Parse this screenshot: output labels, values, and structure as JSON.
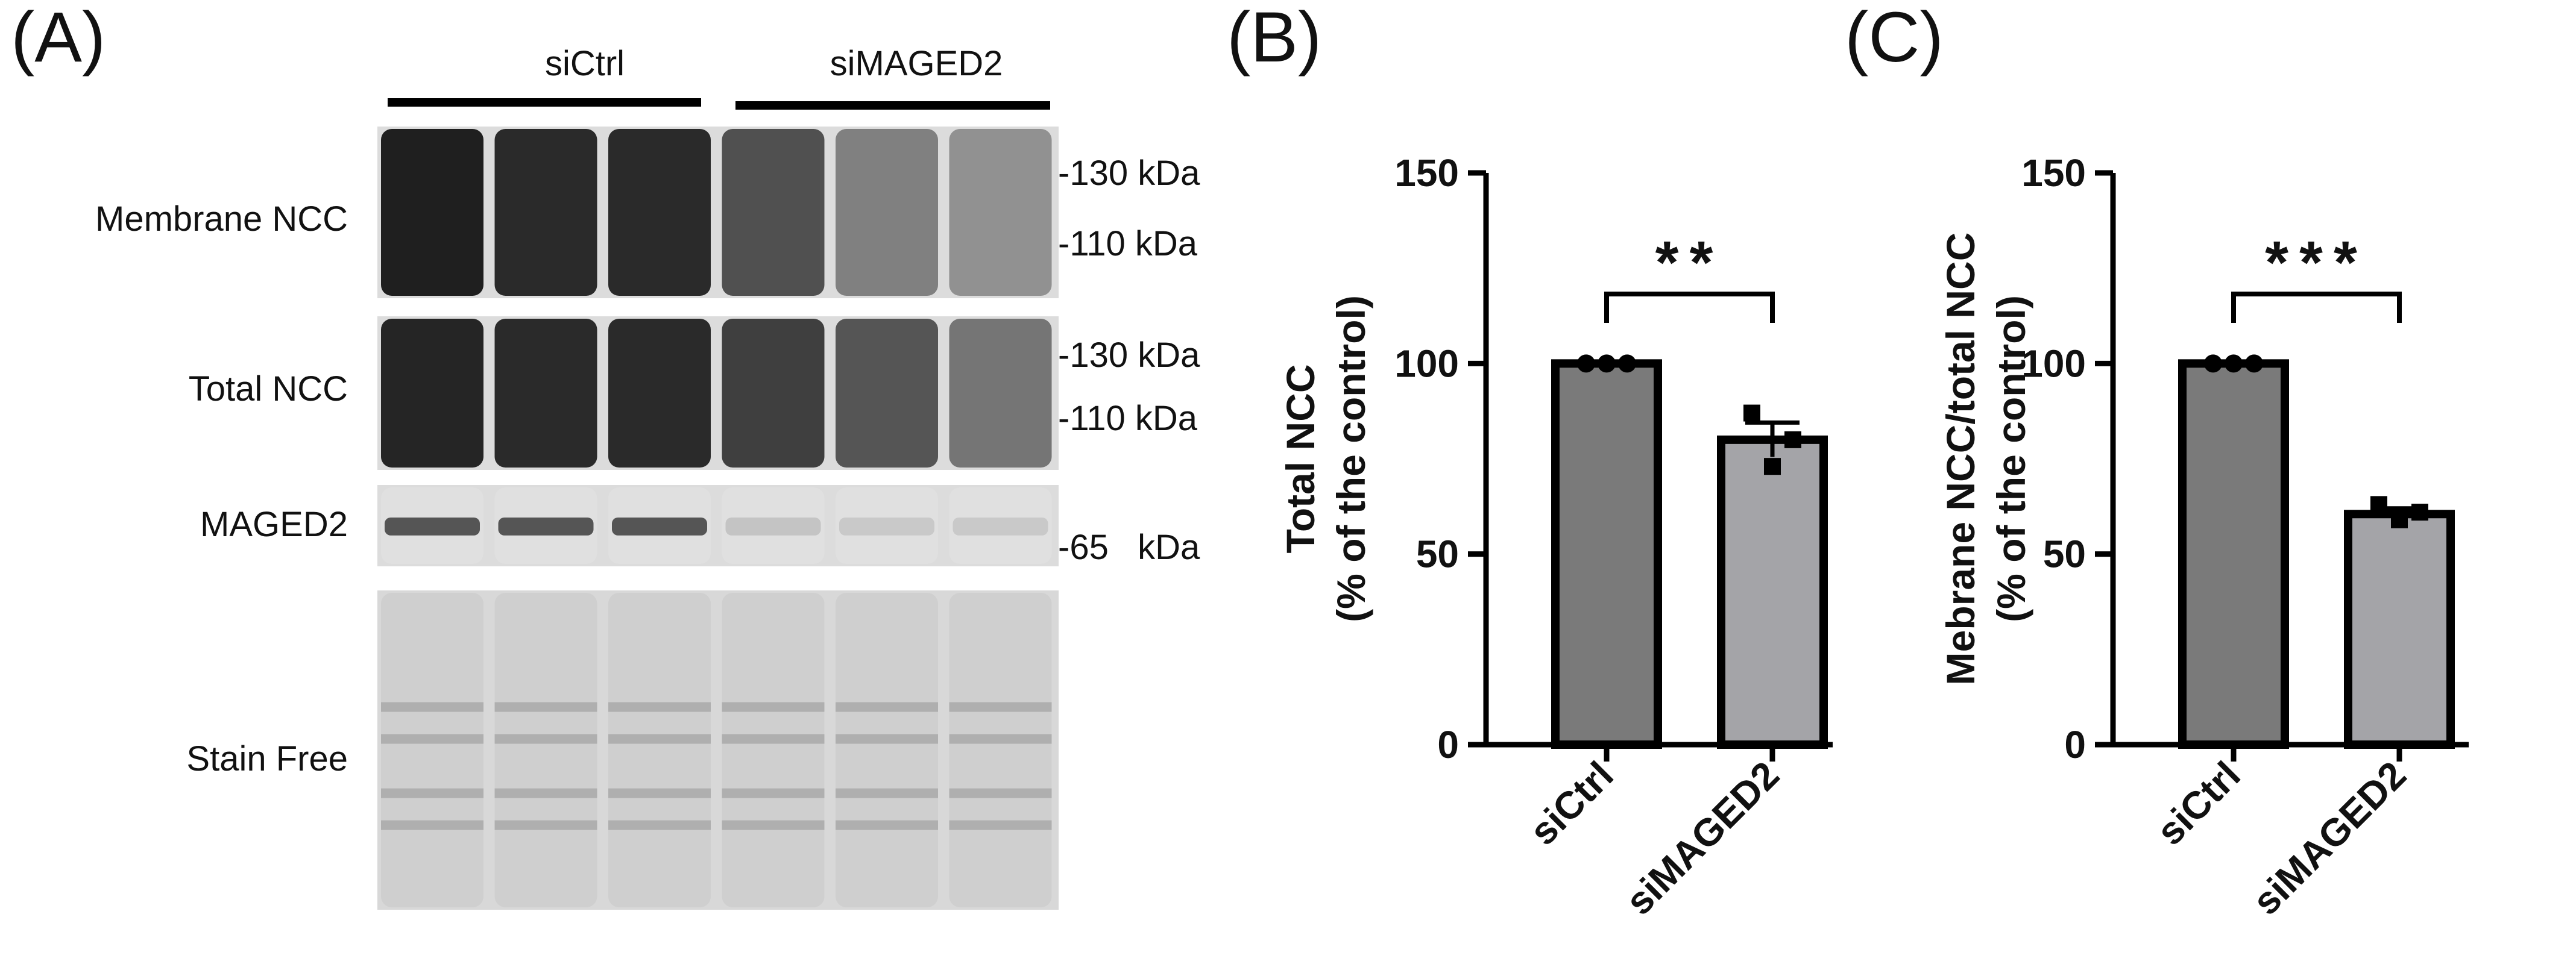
{
  "panel_labels": {
    "a": "(A)",
    "b": "(B)",
    "c": "(C)"
  },
  "blot": {
    "groups": [
      {
        "label": "siCtrl"
      },
      {
        "label": "siMAGED2"
      }
    ],
    "rows": [
      {
        "label": "Membrane NCC",
        "markers": [
          "-130 kDa",
          "-110 kDa"
        ],
        "intensities": [
          0.95,
          0.9,
          0.9,
          0.72,
          0.5,
          0.42
        ]
      },
      {
        "label": "Total NCC",
        "markers": [
          "-130 kDa",
          "-110 kDa"
        ],
        "intensities": [
          0.92,
          0.9,
          0.9,
          0.8,
          0.7,
          0.55
        ]
      },
      {
        "label": "MAGED2",
        "markers": [
          "-65   kDa"
        ],
        "intensities": [
          0.7,
          0.7,
          0.7,
          0.18,
          0.16,
          0.16
        ]
      },
      {
        "label": "Stain Free",
        "markers": [],
        "intensities": [
          0.35,
          0.35,
          0.35,
          0.35,
          0.35,
          0.35
        ]
      }
    ]
  },
  "chart_data": [
    {
      "type": "bar",
      "panel": "(B)",
      "ylabel": [
        "Total NCC",
        "(% of the control)"
      ],
      "categories": [
        "siCtrl",
        "siMAGED2"
      ],
      "values": [
        100,
        80
      ],
      "errors": [
        0,
        4.5
      ],
      "points": [
        [
          100,
          100,
          100
        ],
        [
          87,
          73,
          80
        ]
      ],
      "ylim": [
        0,
        150
      ],
      "yticks": [
        "0",
        "50",
        "100",
        "150"
      ],
      "significance": "**",
      "bar_colors": [
        "#7a7a7a",
        "#a4a4a8"
      ]
    },
    {
      "type": "bar",
      "panel": "(C)",
      "ylabel": [
        "Mebrane NCC/total NCC",
        "(% of the control)"
      ],
      "categories": [
        "siCtrl",
        "siMAGED2"
      ],
      "values": [
        100,
        60.5
      ],
      "errors": [
        0,
        1.5
      ],
      "points": [
        [
          100,
          100,
          100
        ],
        [
          63,
          59,
          61
        ]
      ],
      "ylim": [
        0,
        150
      ],
      "yticks": [
        "0",
        "50",
        "100",
        "150"
      ],
      "significance": "***",
      "bar_colors": [
        "#7a7a7a",
        "#a4a4a8"
      ]
    }
  ]
}
